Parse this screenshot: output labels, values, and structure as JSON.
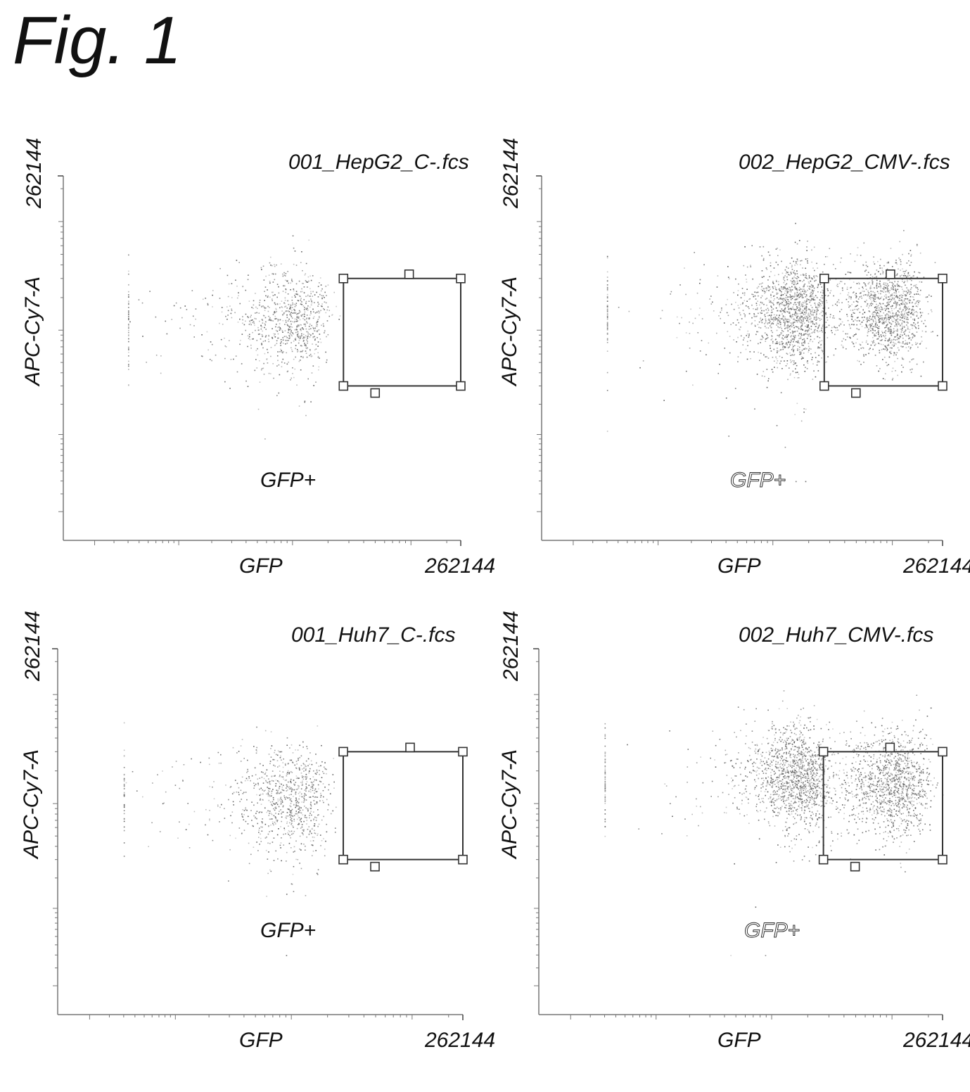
{
  "figure_title": "Fig. 1",
  "chart_data": [
    {
      "type": "scatter",
      "title": "001_HepG2_C-.fcs",
      "xlabel": "GFP",
      "ylabel": "APC-Cy7-A",
      "x_max_label": "262144",
      "y_max_label": "262144",
      "xlim": [
        0,
        262144
      ],
      "ylim": [
        0,
        262144
      ],
      "gate": {
        "name": "GFP+",
        "x": [
          27000,
          262144
        ],
        "y": [
          3000,
          30000
        ]
      },
      "populations": [
        {
          "cx": 9000,
          "cy": 12000,
          "sx": 5000,
          "sy": 9000,
          "n": 900
        }
      ]
    },
    {
      "type": "scatter",
      "title": "002_HepG2_CMV-.fcs",
      "xlabel": "GFP",
      "ylabel": "APC-Cy7-A",
      "x_max_label": "262144",
      "y_max_label": "262144",
      "xlim": [
        0,
        262144
      ],
      "ylim": [
        0,
        262144
      ],
      "gate": {
        "name": "GFP+",
        "x": [
          27000,
          262144
        ],
        "y": [
          3000,
          30000
        ]
      },
      "populations": [
        {
          "cx": 14000,
          "cy": 14000,
          "sx": 6000,
          "sy": 10000,
          "n": 1300
        },
        {
          "cx": 85000,
          "cy": 15000,
          "sx": 45000,
          "sy": 6000,
          "n": 1400
        }
      ]
    },
    {
      "type": "scatter",
      "title": "001_Huh7_C-.fcs",
      "xlabel": "GFP",
      "ylabel": "APC-Cy7-A",
      "x_max_label": "262144",
      "y_max_label": "262144",
      "xlim": [
        0,
        262144
      ],
      "ylim": [
        0,
        262144
      ],
      "gate": {
        "name": "GFP+",
        "x": [
          27000,
          262144
        ],
        "y": [
          3000,
          30000
        ]
      },
      "populations": [
        {
          "cx": 9000,
          "cy": 11000,
          "sx": 5000,
          "sy": 8000,
          "n": 900
        }
      ]
    },
    {
      "type": "scatter",
      "title": "002_Huh7_CMV-.fcs",
      "xlabel": "GFP",
      "ylabel": "APC-Cy7-A",
      "x_max_label": "262144",
      "y_max_label": "262144",
      "xlim": [
        0,
        262144
      ],
      "ylim": [
        0,
        262144
      ],
      "gate": {
        "name": "GFP+",
        "x": [
          27000,
          262144
        ],
        "y": [
          3000,
          30000
        ]
      },
      "populations": [
        {
          "cx": 15000,
          "cy": 18000,
          "sx": 6000,
          "sy": 14000,
          "n": 1300
        },
        {
          "cx": 90000,
          "cy": 15000,
          "sx": 50000,
          "sy": 6000,
          "n": 1400
        }
      ]
    }
  ]
}
